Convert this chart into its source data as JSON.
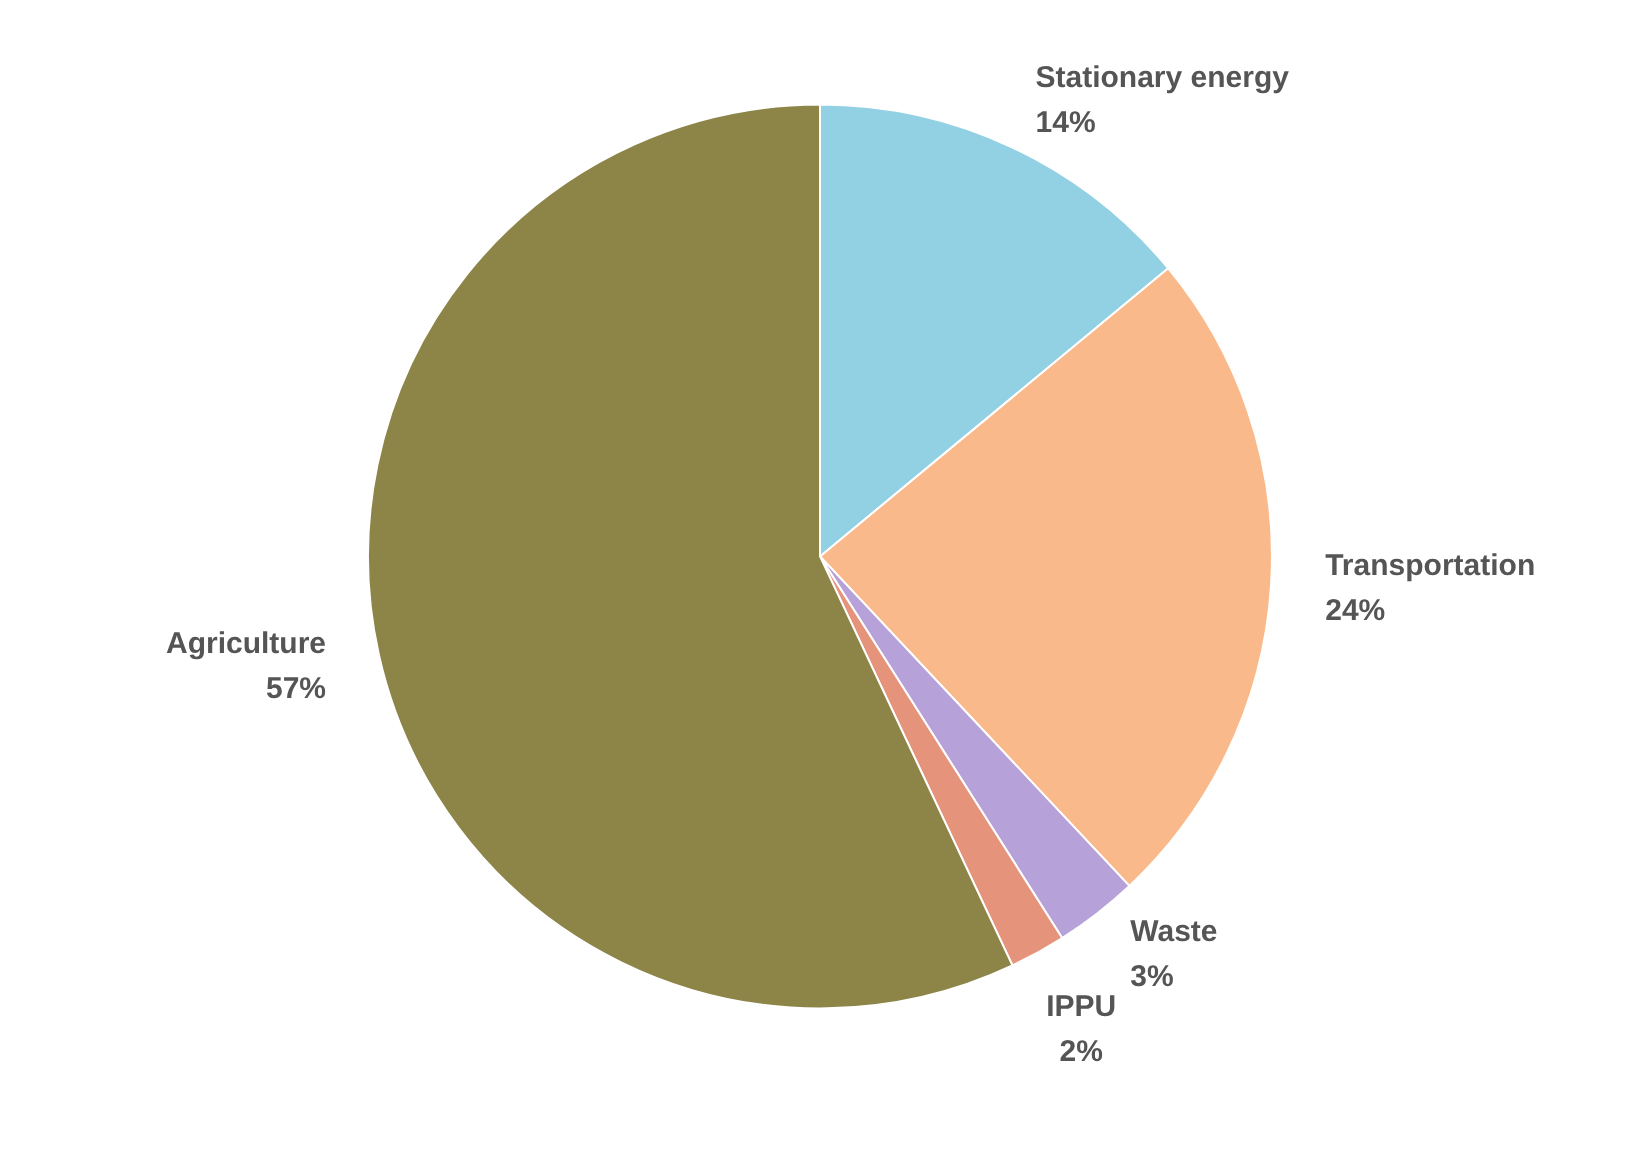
{
  "chart_data": {
    "type": "pie",
    "categories": [
      "Stationary energy",
      "Transportation",
      "Waste",
      "IPPU",
      "Agriculture"
    ],
    "values": [
      14,
      24,
      3,
      2,
      57
    ],
    "value_labels": [
      "14%",
      "24%",
      "3%",
      "2%",
      "57%"
    ],
    "colors": [
      "#92d0e4",
      "#f9b98a",
      "#b6a2d8",
      "#e6937c",
      "#8d8448"
    ]
  }
}
